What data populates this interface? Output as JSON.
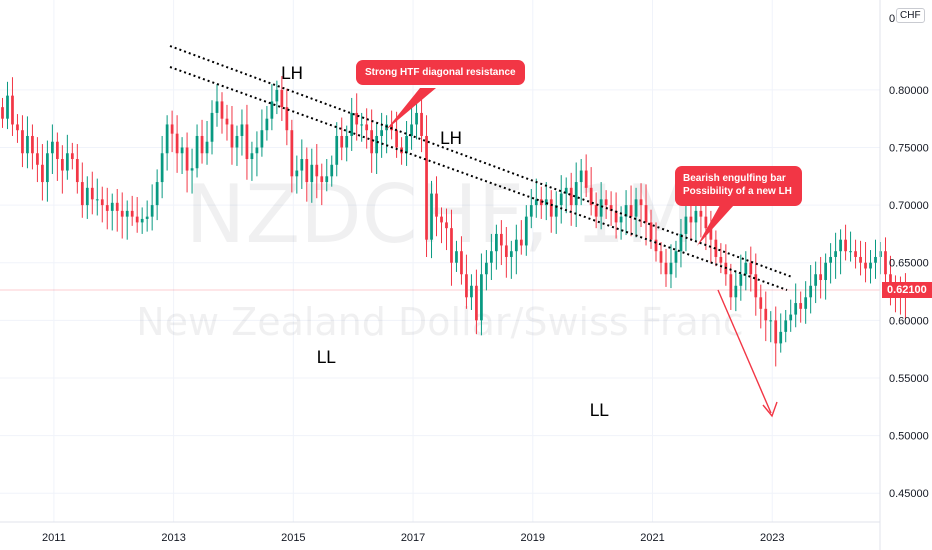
{
  "chart_data": {
    "type": "candlestick",
    "watermark": {
      "symbol": "NZDCHF, 1M",
      "name": "New Zealand Dollar/Swiss Franc"
    },
    "y_axis": {
      "currency": "CHF",
      "ticks": [
        "0.80000",
        "0.75000",
        "0.70000",
        "0.65000",
        "0.60000",
        "0.55000",
        "0.50000",
        "0.45000"
      ],
      "tick_values": [
        0.8,
        0.75,
        0.7,
        0.65,
        0.6,
        0.55,
        0.5,
        0.45
      ],
      "range": [
        0.425,
        0.878
      ],
      "top_label": "0"
    },
    "x_axis": {
      "ticks": [
        "2011",
        "2013",
        "2015",
        "2017",
        "2019",
        "2021",
        "2023"
      ],
      "tick_values": [
        2011,
        2013,
        2015,
        2017,
        2019,
        2021,
        2023
      ],
      "range": [
        2010.1,
        2024.8
      ]
    },
    "last_price": {
      "label": "0.62100",
      "value": 0.621
    },
    "candle_start": 2010.1,
    "colors": {
      "up": "#089981",
      "down": "#f23645",
      "annotation": "#f23645",
      "line": "#000000"
    },
    "closes": [
      0.775,
      0.795,
      0.77,
      0.765,
      0.745,
      0.76,
      0.745,
      0.735,
      0.72,
      0.745,
      0.755,
      0.74,
      0.73,
      0.745,
      0.74,
      0.72,
      0.7,
      0.715,
      0.705,
      0.705,
      0.7,
      0.695,
      0.702,
      0.695,
      0.69,
      0.695,
      0.69,
      0.685,
      0.688,
      0.69,
      0.7,
      0.72,
      0.745,
      0.77,
      0.762,
      0.745,
      0.75,
      0.73,
      0.732,
      0.76,
      0.745,
      0.755,
      0.78,
      0.79,
      0.775,
      0.77,
      0.75,
      0.76,
      0.77,
      0.74,
      0.745,
      0.75,
      0.765,
      0.775,
      0.79,
      0.8,
      0.785,
      0.765,
      0.725,
      0.73,
      0.74,
      0.72,
      0.735,
      0.725,
      0.72,
      0.725,
      0.735,
      0.76,
      0.75,
      0.76,
      0.78,
      0.77,
      0.77,
      0.765,
      0.745,
      0.76,
      0.765,
      0.77,
      0.765,
      0.75,
      0.745,
      0.76,
      0.77,
      0.78,
      0.76,
      0.67,
      0.71,
      0.69,
      0.685,
      0.68,
      0.65,
      0.66,
      0.64,
      0.62,
      0.63,
      0.6,
      0.64,
      0.65,
      0.66,
      0.675,
      0.665,
      0.655,
      0.66,
      0.67,
      0.665,
      0.69,
      0.7,
      0.705,
      0.7,
      0.705,
      0.69,
      0.7,
      0.71,
      0.715,
      0.7,
      0.72,
      0.73,
      0.715,
      0.7,
      0.69,
      0.705,
      0.7,
      0.695,
      0.685,
      0.69,
      0.7,
      0.69,
      0.705,
      0.7,
      0.685,
      0.67,
      0.66,
      0.65,
      0.64,
      0.65,
      0.66,
      0.675,
      0.69,
      0.685,
      0.695,
      0.69,
      0.68,
      0.67,
      0.655,
      0.65,
      0.64,
      0.62,
      0.63,
      0.64,
      0.65,
      0.64,
      0.62,
      0.61,
      0.6,
      0.6,
      0.58,
      0.59,
      0.6,
      0.605,
      0.615,
      0.61,
      0.62,
      0.63,
      0.64,
      0.635,
      0.65,
      0.655,
      0.66,
      0.67,
      0.66,
      0.66,
      0.655,
      0.65,
      0.645,
      0.65,
      0.655,
      0.66,
      0.64,
      0.63,
      0.625,
      0.624,
      0.621
    ]
  },
  "annotations": {
    "pivots": [
      "LH",
      "LH",
      "LL",
      "LL"
    ],
    "callout_resistance": "Strong HTF diagonal resistance",
    "callout_engulfing_line1": "Bearish engulfing bar",
    "callout_engulfing_line2": "Possibility of a new LH"
  }
}
